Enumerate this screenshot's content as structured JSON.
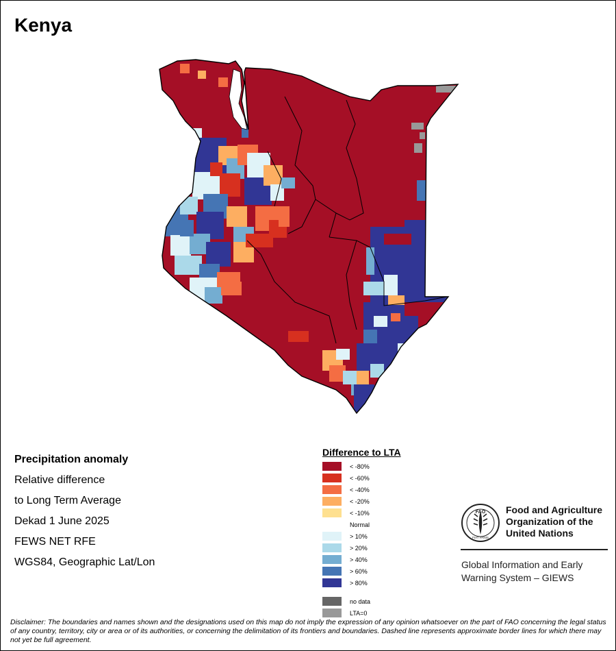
{
  "map": {
    "title": "Kenya",
    "product": {
      "name": "Precipitation anomaly",
      "line1": "Relative difference",
      "line2": "to Long Term Average",
      "period": "Dekad 1 June 2025",
      "source": "FEWS NET RFE",
      "projection": "WGS84, Geographic Lat/Lon"
    },
    "colors": {
      "lt80": "#a50f26",
      "lt60": "#d7301f",
      "lt40": "#f46d43",
      "lt20": "#fdae61",
      "lt10": "#fee090",
      "gt10": "#e0f3f8",
      "gt20": "#abd9e9",
      "gt40": "#74add1",
      "gt60": "#4575b4",
      "gt80": "#313695",
      "nodata": "#666666",
      "lta0": "#999999",
      "border": "#000000"
    }
  },
  "legend": {
    "title": "Difference to LTA",
    "items": [
      {
        "label": "< -80%",
        "color": "#a50f26"
      },
      {
        "label": "< -60%",
        "color": "#d7301f"
      },
      {
        "label": "< -40%",
        "color": "#f46d43"
      },
      {
        "label": "< -20%",
        "color": "#fdae61"
      },
      {
        "label": "< -10%",
        "color": "#fee090"
      },
      {
        "label": "Normal",
        "color": "#ffffff"
      },
      {
        "label": "> 10%",
        "color": "#e0f3f8"
      },
      {
        "label": "> 20%",
        "color": "#abd9e9"
      },
      {
        "label": "> 40%",
        "color": "#74add1"
      },
      {
        "label": "> 60%",
        "color": "#4575b4"
      },
      {
        "label": "> 80%",
        "color": "#313695"
      }
    ],
    "extra": [
      {
        "label": "no data",
        "color": "#666666"
      },
      {
        "label": "LTA=0",
        "color": "#999999"
      }
    ]
  },
  "branding": {
    "org_line1": "Food and Agriculture",
    "org_line2": "Organization of the",
    "org_line3": "United Nations",
    "system_line1": "Global Information and Early",
    "system_line2": "Warning System – GIEWS",
    "logo_text": "FAO",
    "motto": "FIAT PANIS"
  },
  "disclaimer": "Disclaimer: The boundaries and names shown and the designations used on this map do not imply the expression of any opinion whatsoever on the part of FAO concerning the legal status of any country, territory, city or area or of its authorities, or concerning the delimitation of its frontiers and boundaries. Dashed line represents approximate border lines for which there may not yet be full agreement."
}
